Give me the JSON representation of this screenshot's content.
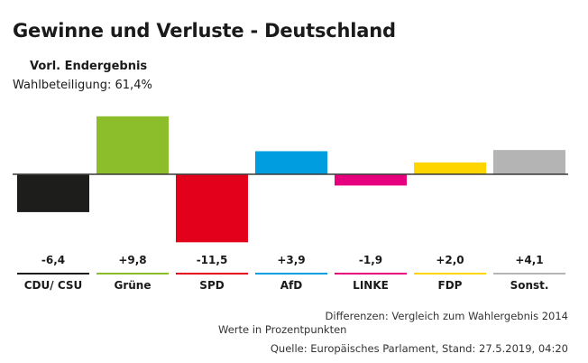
{
  "header": {
    "title": "Gewinne und Verluste - Deutschland",
    "subtitle": "Vorl. Endergebnis",
    "turnout": "Wahlbeteiligung: 61,4%"
  },
  "chart_data": {
    "type": "bar",
    "categories": [
      "CDU/ CSU",
      "Grüne",
      "SPD",
      "AfD",
      "LINKE",
      "FDP",
      "Sonst."
    ],
    "values": [
      -6.4,
      9.8,
      -11.5,
      3.9,
      -1.9,
      2.0,
      4.1
    ],
    "value_labels": [
      "-6,4",
      "+9,8",
      "-11,5",
      "+3,9",
      "-1,9",
      "+2,0",
      "+4,1"
    ],
    "colors": [
      "#1d1d1b",
      "#8bbe2a",
      "#e3001b",
      "#009ee0",
      "#e6007e",
      "#ffd500",
      "#b4b4b4"
    ],
    "ylim": [
      -11.5,
      9.8
    ],
    "grid": false,
    "legend": "none"
  },
  "footer": {
    "note_differences": "Differenzen: Vergleich zum Wahlergebnis 2014",
    "note_units": "Werte in Prozentpunkten",
    "source": "Quelle: Europäisches Parlament, Stand: 27.5.2019, 04:20"
  }
}
